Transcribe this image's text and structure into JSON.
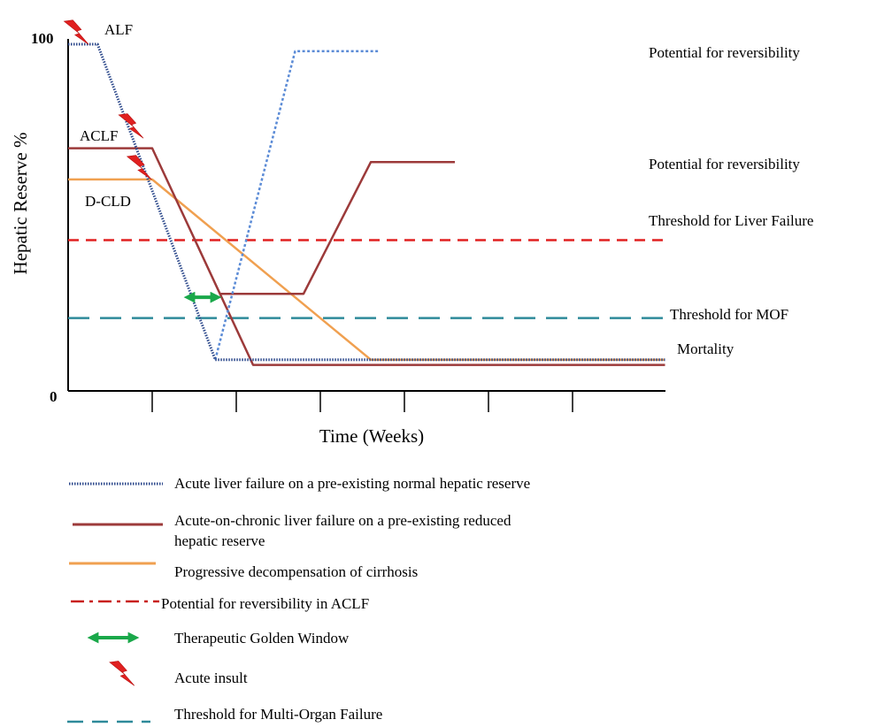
{
  "chart_data": {
    "type": "line",
    "ylabel": "Hepatic Reserve %",
    "xlabel": "Time (Weeks)",
    "y_ticks": [
      "100",
      "0"
    ],
    "ylim": [
      0,
      100
    ],
    "x_tick_count": 6,
    "colors": {
      "alf": "#2e4a8c",
      "alf_recovery": "#5b8bd6",
      "aclf": "#9c3a3a",
      "dcld": "#f0a050",
      "threshold_liver_failure": "#e02020",
      "threshold_mof": "#2e8a9a",
      "golden_window": "#1aa84a",
      "insult": "#e02020"
    },
    "series": [
      {
        "key": "alf",
        "x": [
          0,
          0.35,
          1.75,
          7.1
        ],
        "y": [
          100,
          100,
          9,
          9
        ],
        "recovery": {
          "x": [
            1.75,
            2.7,
            3.7
          ],
          "y": [
            9,
            98,
            98
          ]
        }
      },
      {
        "key": "aclf",
        "x": [
          0,
          1.0,
          2.2,
          7.1
        ],
        "y": [
          70,
          70,
          7.5,
          7.5
        ],
        "recovery": {
          "x": [
            1.8,
            2.8,
            3.6,
            4.6
          ],
          "y": [
            28,
            28,
            66,
            66
          ]
        }
      },
      {
        "key": "dcld",
        "x": [
          0,
          1.0,
          3.6,
          7.1
        ],
        "y": [
          61,
          61,
          9,
          9
        ]
      }
    ],
    "thresholds": [
      {
        "key": "liver_failure",
        "y": 43.5,
        "style": "dashed"
      },
      {
        "key": "mof",
        "y": 21,
        "style": "long-dashed"
      }
    ],
    "golden_window": {
      "x": [
        1.4,
        1.8
      ],
      "y": 27
    },
    "insults": [
      {
        "x": 0.1,
        "y": 103
      },
      {
        "x": 0.75,
        "y": 76
      },
      {
        "x": 0.85,
        "y": 64
      }
    ],
    "curve_labels": [
      "ALF",
      "ACLF",
      "D-CLD"
    ],
    "annotations": [
      "Potential for reversibility",
      "Potential for reversibility",
      "Threshold for Liver Failure",
      "Threshold for MOF",
      "Mortality"
    ],
    "legend": [
      {
        "key": "alf",
        "label": "Acute liver failure on a pre-existing normal hepatic reserve"
      },
      {
        "key": "aclf",
        "label_line1": "Acute-on-chronic liver failure on a pre-existing reduced",
        "label_line2": "hepatic reserve"
      },
      {
        "key": "dcld",
        "label": "Progressive decompensation of cirrhosis"
      },
      {
        "key": "reversibility",
        "label": "Potential for reversibility in ACLF"
      },
      {
        "key": "golden_window",
        "label": "Therapeutic Golden Window"
      },
      {
        "key": "insult",
        "label": "Acute insult"
      },
      {
        "key": "mof",
        "label": "Threshold for Multi-Organ Failure"
      }
    ]
  }
}
